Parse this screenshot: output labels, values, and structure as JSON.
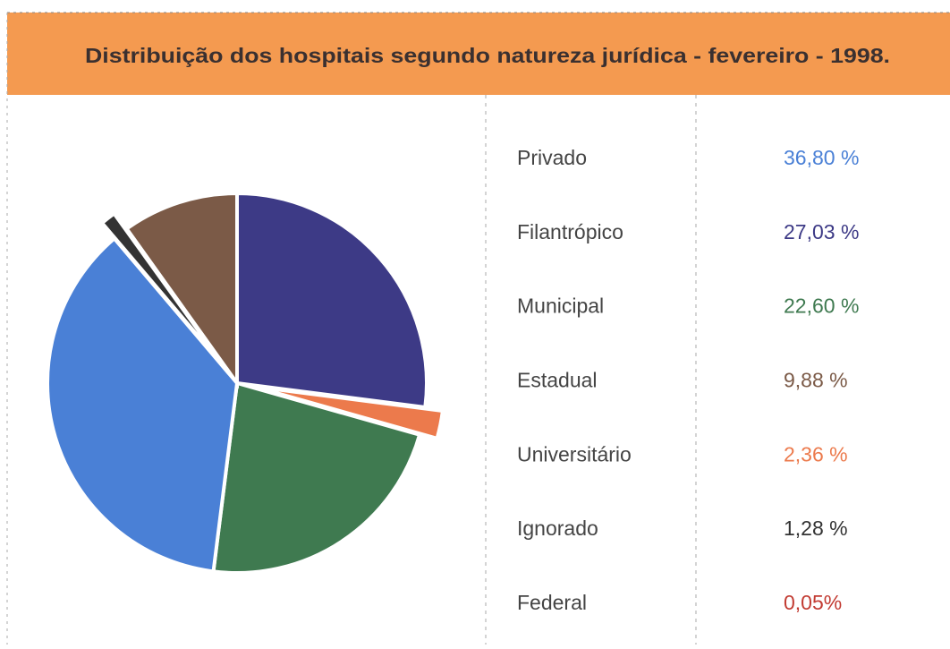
{
  "chart_data": {
    "type": "pie",
    "title": "Distribuição dos hospitais segundo natureza jurídica - fevereiro - 1998.",
    "categories": [
      "Privado",
      "Filantrópico",
      "Municipal",
      "Estadual",
      "Universitário",
      "Ignorado",
      "Federal"
    ],
    "values": [
      36.8,
      27.03,
      22.6,
      9.88,
      2.36,
      1.28,
      0.05
    ],
    "value_labels": [
      "36,80 %",
      "27,03 %",
      "22,60 %",
      "9,88 %",
      "2,36 %",
      "1,28 %",
      "0,05%"
    ],
    "colors": [
      "#4a80d6",
      "#3d3a86",
      "#3f7a50",
      "#7b5a47",
      "#ec7a4c",
      "#333333",
      "#c23b32"
    ]
  }
}
